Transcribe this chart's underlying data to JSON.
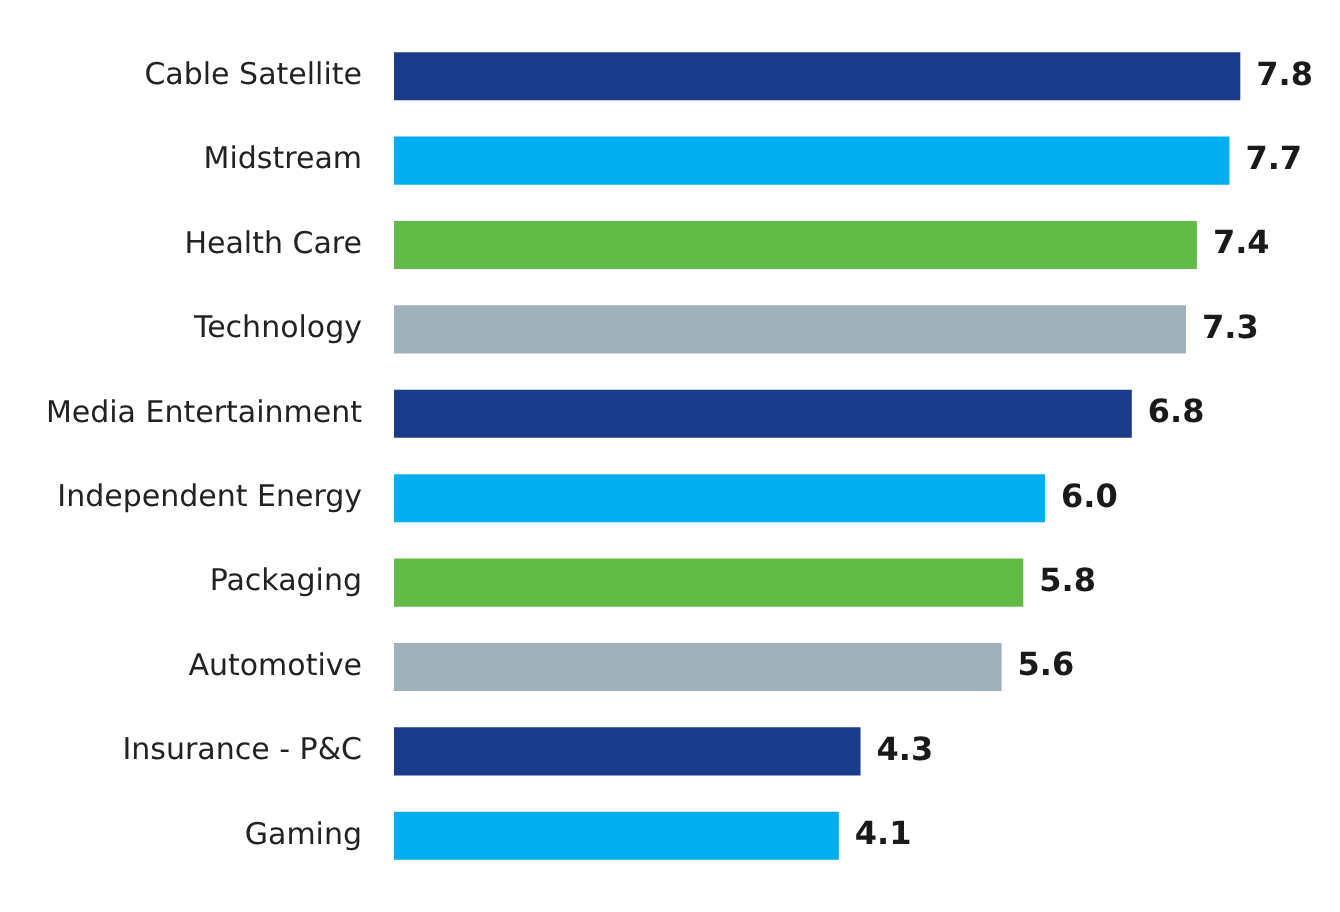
{
  "chart_data": {
    "type": "bar",
    "orientation": "horizontal",
    "categories": [
      "Cable Satellite",
      "Midstream",
      "Health Care",
      "Technology",
      "Media Entertainment",
      "Independent Energy",
      "Packaging",
      "Automotive",
      "Insurance - P&C",
      "Gaming"
    ],
    "values": [
      7.8,
      7.7,
      7.4,
      7.3,
      6.8,
      6.0,
      5.8,
      5.6,
      4.3,
      4.1
    ],
    "value_labels": [
      "7.8",
      "7.7",
      "7.4",
      "7.3",
      "6.8",
      "6.0",
      "5.8",
      "5.6",
      "4.3",
      "4.1"
    ],
    "colors": [
      "#1a3a8a",
      "#00aeef",
      "#62bb46",
      "#9fb1bb",
      "#1a3a8a",
      "#00aeef",
      "#62bb46",
      "#9fb1bb",
      "#1a3a8a",
      "#00aeef"
    ],
    "tick_labels": "y",
    "legend": false
  }
}
